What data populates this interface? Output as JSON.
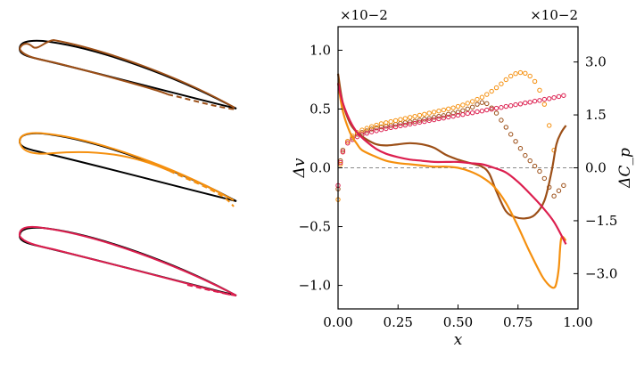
{
  "colors": {
    "brown": "#9c4f17",
    "orange": "#f5900f",
    "crimson": "#dc1f4f",
    "black": "#000000",
    "zero_line": "#888888"
  },
  "airfoils": [
    {
      "name": "airfoil-brown",
      "color": "#9c4f17"
    },
    {
      "name": "airfoil-orange",
      "color": "#f5900f"
    },
    {
      "name": "airfoil-crimson",
      "color": "#dc1f4f"
    }
  ],
  "chart_data": {
    "type": "line",
    "xlabel": "x",
    "ylabel_left": "Δv",
    "ylabel_right": "ΔC_p",
    "xlim": [
      0.0,
      1.0
    ],
    "ylim_left": [
      -1.2,
      1.2
    ],
    "ylim_right": [
      -4.0,
      4.0
    ],
    "left_multiplier": "×10−2",
    "right_multiplier": "×10−2",
    "x_ticks": [
      "0.00",
      "0.25",
      "0.50",
      "0.75",
      "1.00"
    ],
    "left_ticks": [
      "−1.0",
      "−0.5",
      "0.0",
      "0.5",
      "1.0"
    ],
    "right_ticks": [
      "−3.0",
      "−1.5",
      "0.0",
      "1.5",
      "3.0"
    ],
    "series": [
      {
        "name": "brown",
        "color": "#9c4f17",
        "style": "line",
        "axis": "left",
        "x": [
          0.0,
          0.02,
          0.05,
          0.08,
          0.12,
          0.16,
          0.2,
          0.25,
          0.3,
          0.35,
          0.4,
          0.45,
          0.5,
          0.55,
          0.6,
          0.63,
          0.66,
          0.7,
          0.74,
          0.78,
          0.82,
          0.86,
          0.89,
          0.91,
          0.93,
          0.95
        ],
        "values": [
          0.8,
          0.55,
          0.38,
          0.3,
          0.24,
          0.2,
          0.19,
          0.2,
          0.21,
          0.2,
          0.17,
          0.11,
          0.07,
          0.04,
          0.01,
          -0.05,
          -0.2,
          -0.37,
          -0.42,
          -0.43,
          -0.4,
          -0.28,
          -0.03,
          0.2,
          0.3,
          0.36
        ]
      },
      {
        "name": "orange",
        "color": "#f5900f",
        "style": "line",
        "axis": "left",
        "x": [
          0.0,
          0.02,
          0.05,
          0.08,
          0.1,
          0.15,
          0.2,
          0.25,
          0.3,
          0.35,
          0.4,
          0.45,
          0.5,
          0.55,
          0.6,
          0.65,
          0.7,
          0.75,
          0.8,
          0.85,
          0.88,
          0.9,
          0.91,
          0.92,
          0.93,
          0.95
        ],
        "values": [
          0.72,
          0.48,
          0.3,
          0.2,
          0.15,
          0.1,
          0.06,
          0.04,
          0.03,
          0.02,
          0.01,
          0.01,
          0.0,
          -0.03,
          -0.08,
          -0.16,
          -0.3,
          -0.5,
          -0.72,
          -0.92,
          -1.0,
          -1.02,
          -0.98,
          -0.85,
          -0.6,
          -0.62
        ]
      },
      {
        "name": "crimson",
        "color": "#dc1f4f",
        "style": "line",
        "axis": "left",
        "x": [
          0.0,
          0.02,
          0.05,
          0.08,
          0.12,
          0.16,
          0.2,
          0.25,
          0.3,
          0.35,
          0.4,
          0.45,
          0.5,
          0.55,
          0.6,
          0.65,
          0.7,
          0.75,
          0.8,
          0.85,
          0.9,
          0.95
        ],
        "values": [
          0.72,
          0.55,
          0.4,
          0.3,
          0.22,
          0.16,
          0.12,
          0.09,
          0.07,
          0.06,
          0.05,
          0.05,
          0.05,
          0.04,
          0.03,
          0.0,
          -0.04,
          -0.12,
          -0.22,
          -0.33,
          -0.46,
          -0.65
        ]
      },
      {
        "name": "brown-cp",
        "color": "#9c4f17",
        "style": "markers",
        "axis": "right",
        "x": [
          0.0,
          0.01,
          0.02,
          0.04,
          0.06,
          0.08,
          0.1,
          0.12,
          0.14,
          0.16,
          0.18,
          0.2,
          0.22,
          0.24,
          0.26,
          0.28,
          0.3,
          0.32,
          0.34,
          0.36,
          0.38,
          0.4,
          0.42,
          0.44,
          0.46,
          0.48,
          0.5,
          0.52,
          0.54,
          0.56,
          0.58,
          0.6,
          0.62,
          0.64,
          0.66,
          0.68,
          0.7,
          0.72,
          0.74,
          0.76,
          0.78,
          0.8,
          0.82,
          0.84,
          0.86,
          0.88,
          0.9,
          0.92,
          0.94
        ],
        "values": [
          -0.6,
          0.2,
          0.5,
          0.75,
          0.85,
          0.95,
          1.0,
          1.05,
          1.1,
          1.13,
          1.16,
          1.18,
          1.2,
          1.23,
          1.26,
          1.28,
          1.3,
          1.32,
          1.35,
          1.38,
          1.4,
          1.43,
          1.46,
          1.48,
          1.52,
          1.55,
          1.58,
          1.62,
          1.67,
          1.72,
          1.8,
          1.85,
          1.82,
          1.7,
          1.55,
          1.35,
          1.15,
          0.95,
          0.75,
          0.55,
          0.35,
          0.2,
          0.05,
          -0.1,
          -0.3,
          -0.55,
          -0.8,
          -0.65,
          -0.5
        ]
      },
      {
        "name": "orange-cp",
        "color": "#f5900f",
        "style": "markers",
        "axis": "right",
        "x": [
          0.0,
          0.01,
          0.02,
          0.04,
          0.06,
          0.08,
          0.1,
          0.12,
          0.14,
          0.16,
          0.18,
          0.2,
          0.22,
          0.24,
          0.26,
          0.28,
          0.3,
          0.32,
          0.34,
          0.36,
          0.38,
          0.4,
          0.42,
          0.44,
          0.46,
          0.48,
          0.5,
          0.52,
          0.54,
          0.56,
          0.58,
          0.6,
          0.62,
          0.64,
          0.66,
          0.68,
          0.7,
          0.72,
          0.74,
          0.76,
          0.78,
          0.8,
          0.82,
          0.84,
          0.86,
          0.88,
          0.9
        ],
        "values": [
          -0.9,
          0.1,
          0.45,
          0.75,
          0.9,
          1.0,
          1.07,
          1.12,
          1.17,
          1.21,
          1.25,
          1.28,
          1.31,
          1.34,
          1.37,
          1.4,
          1.43,
          1.46,
          1.49,
          1.52,
          1.55,
          1.58,
          1.61,
          1.64,
          1.67,
          1.7,
          1.74,
          1.78,
          1.83,
          1.88,
          1.94,
          2.0,
          2.08,
          2.17,
          2.27,
          2.38,
          2.5,
          2.6,
          2.67,
          2.7,
          2.68,
          2.6,
          2.45,
          2.2,
          1.8,
          1.2,
          0.5
        ]
      },
      {
        "name": "crimson-cp",
        "color": "#dc1f4f",
        "style": "markers",
        "axis": "right",
        "x": [
          0.0,
          0.01,
          0.02,
          0.04,
          0.06,
          0.08,
          0.1,
          0.12,
          0.14,
          0.16,
          0.18,
          0.2,
          0.22,
          0.24,
          0.26,
          0.28,
          0.3,
          0.32,
          0.34,
          0.36,
          0.38,
          0.4,
          0.42,
          0.44,
          0.46,
          0.48,
          0.5,
          0.52,
          0.54,
          0.56,
          0.58,
          0.6,
          0.62,
          0.64,
          0.66,
          0.68,
          0.7,
          0.72,
          0.74,
          0.76,
          0.78,
          0.8,
          0.82,
          0.84,
          0.86,
          0.88,
          0.9,
          0.92,
          0.94
        ],
        "values": [
          -0.5,
          0.15,
          0.45,
          0.7,
          0.8,
          0.88,
          0.94,
          0.98,
          1.02,
          1.05,
          1.08,
          1.11,
          1.14,
          1.16,
          1.19,
          1.21,
          1.24,
          1.26,
          1.29,
          1.31,
          1.34,
          1.36,
          1.39,
          1.41,
          1.44,
          1.46,
          1.49,
          1.51,
          1.54,
          1.56,
          1.59,
          1.61,
          1.64,
          1.66,
          1.69,
          1.71,
          1.74,
          1.76,
          1.79,
          1.81,
          1.84,
          1.86,
          1.89,
          1.91,
          1.94,
          1.96,
          1.99,
          2.02,
          2.05
        ]
      }
    ]
  }
}
